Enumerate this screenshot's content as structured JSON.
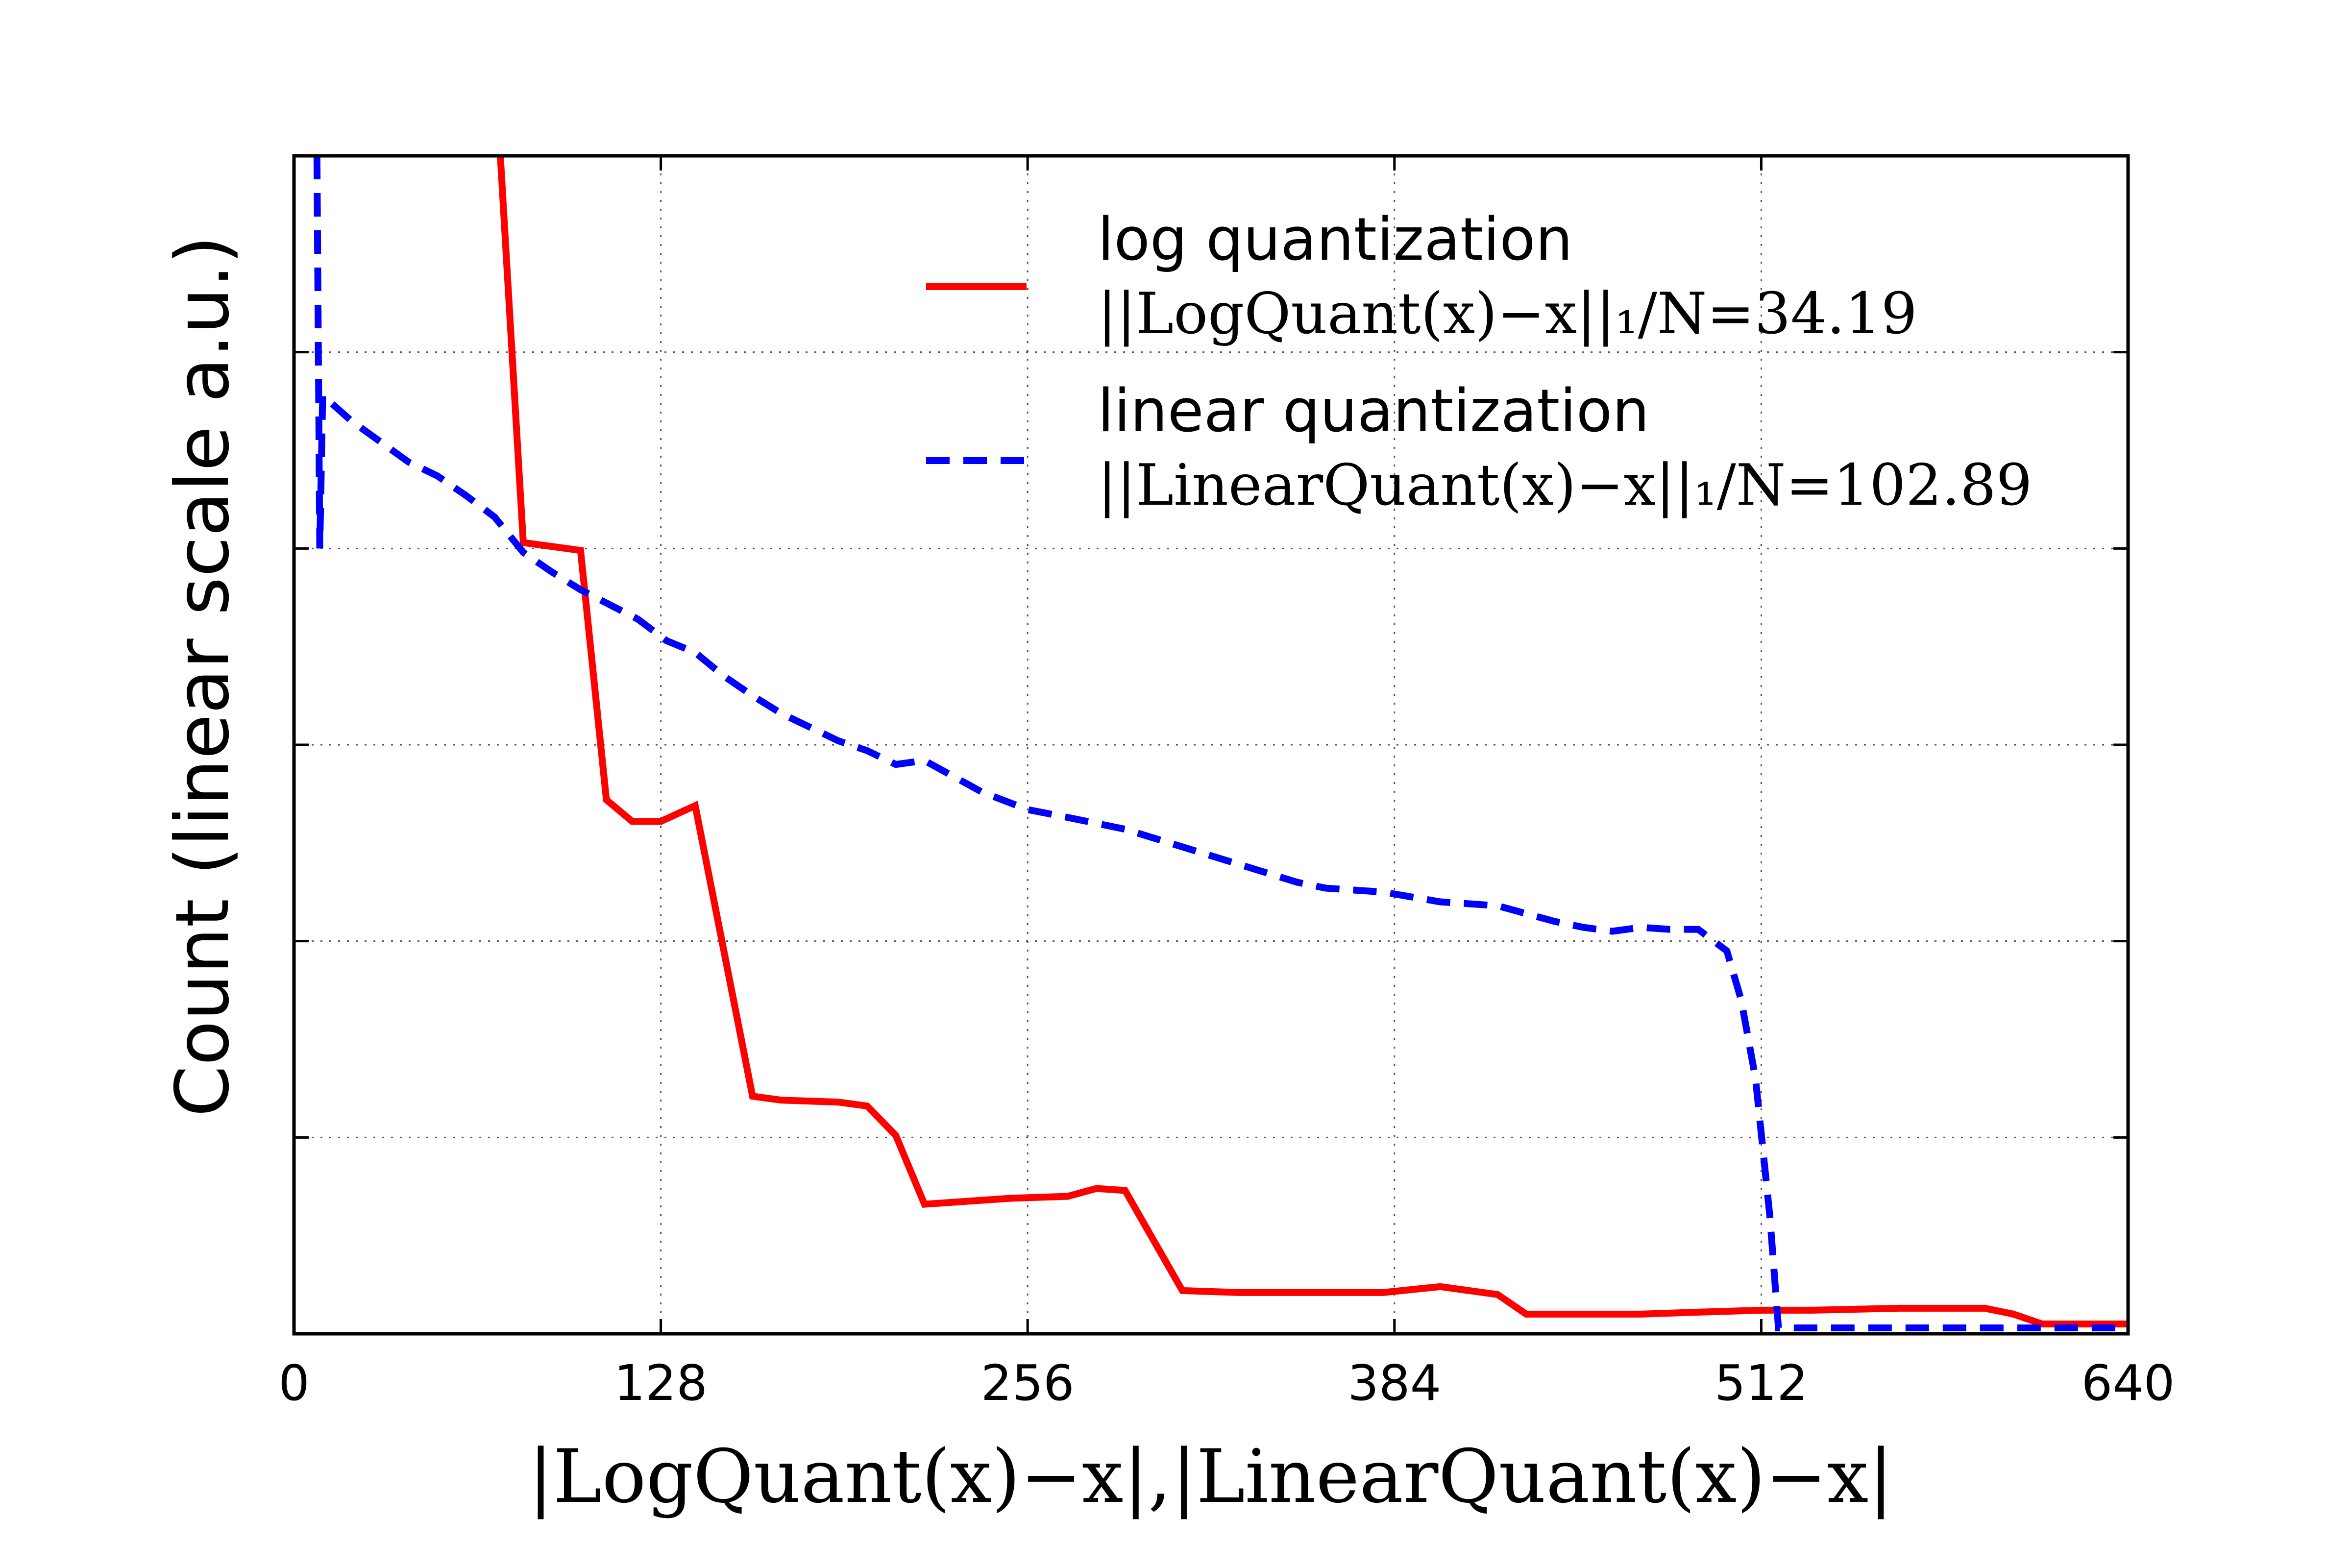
{
  "chart_data": {
    "type": "line",
    "title": "",
    "xlabel": "|LogQuant(x)−x|,|LinearQuant(x)−x|",
    "ylabel": "Count (linear scale a.u.)",
    "xlim": [
      0,
      640
    ],
    "ylim": [
      0,
      6
    ],
    "xticks": [
      0,
      128,
      256,
      384,
      512,
      640
    ],
    "xtick_labels": [
      "0",
      "128",
      "256",
      "384",
      "512",
      "640"
    ],
    "yticks": [
      1,
      2,
      3,
      4,
      5
    ],
    "grid": true,
    "legend_position": "top-right",
    "series": [
      {
        "name": "log quantization",
        "legend_lines": [
          "log quantization",
          "||LogQuant(x)−x||₁/N=34.19"
        ],
        "color": "#ff0000",
        "style": "solid",
        "x": [
          72,
          80,
          100,
          109,
          118,
          128,
          140,
          160,
          170,
          190,
          200,
          210,
          220,
          240,
          250,
          270,
          280,
          290,
          310,
          330,
          360,
          380,
          400,
          420,
          430,
          440,
          450,
          470,
          490,
          512,
          530,
          560,
          590,
          600,
          610,
          640
        ],
        "y": [
          6.0,
          4.03,
          3.99,
          2.72,
          2.61,
          2.61,
          2.69,
          1.21,
          1.19,
          1.18,
          1.16,
          1.01,
          0.66,
          0.68,
          0.69,
          0.7,
          0.74,
          0.73,
          0.22,
          0.21,
          0.21,
          0.21,
          0.24,
          0.2,
          0.1,
          0.1,
          0.1,
          0.1,
          0.11,
          0.12,
          0.12,
          0.13,
          0.13,
          0.1,
          0.05,
          0.05
        ]
      },
      {
        "name": "linear quantization",
        "legend_lines": [
          "linear quantization",
          "||LinearQuant(x)−x||₁/N=102.89"
        ],
        "color": "#0000ff",
        "style": "dashed",
        "x": [
          8,
          9,
          10,
          20,
          40,
          50,
          60,
          70,
          80,
          90,
          100,
          120,
          130,
          140,
          150,
          160,
          170,
          190,
          200,
          210,
          220,
          240,
          256,
          270,
          290,
          310,
          330,
          350,
          360,
          380,
          400,
          420,
          440,
          450,
          460,
          470,
          480,
          490,
          500,
          505,
          510,
          515,
          518,
          540,
          560,
          580,
          600,
          620,
          640
        ],
        "y": [
          6.0,
          4.0,
          4.78,
          4.65,
          4.44,
          4.37,
          4.27,
          4.16,
          3.98,
          3.88,
          3.79,
          3.64,
          3.53,
          3.47,
          3.35,
          3.25,
          3.16,
          3.02,
          2.97,
          2.9,
          2.92,
          2.76,
          2.67,
          2.63,
          2.57,
          2.48,
          2.39,
          2.3,
          2.27,
          2.25,
          2.2,
          2.18,
          2.1,
          2.07,
          2.05,
          2.07,
          2.06,
          2.06,
          1.95,
          1.7,
          1.3,
          0.6,
          0.03,
          0.03,
          0.03,
          0.03,
          0.03,
          0.03,
          0.03
        ]
      }
    ]
  }
}
